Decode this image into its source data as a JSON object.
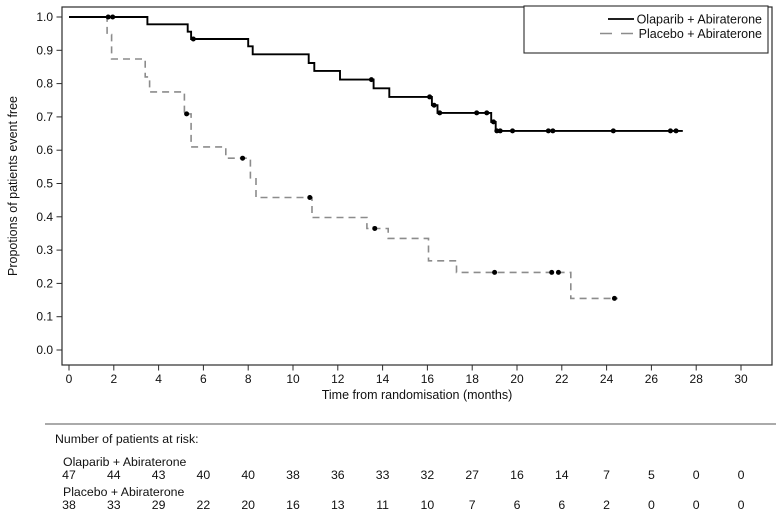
{
  "chart_data": {
    "type": "line",
    "subtype": "kaplan-meier-step",
    "title": "",
    "xlabel": "Time from randomisation (months)",
    "ylabel": "Propotions of patients event free",
    "xlim": [
      0,
      30
    ],
    "ylim": [
      0.0,
      1.0
    ],
    "x_ticks": [
      0,
      2,
      4,
      6,
      8,
      10,
      12,
      14,
      16,
      18,
      20,
      22,
      24,
      26,
      28,
      30
    ],
    "y_ticks": [
      1.0,
      0.9,
      0.8,
      0.7,
      0.6,
      0.5,
      0.4,
      0.3,
      0.2,
      0.1,
      0.0
    ],
    "grid": false,
    "legend_position": "top-right",
    "series": [
      {
        "name": "Olaparib + Abiraterone",
        "color": "#000000",
        "dash": "solid",
        "steps": [
          [
            0,
            1.0
          ],
          [
            3.5,
            1.0
          ],
          [
            3.5,
            0.978
          ],
          [
            5.3,
            0.978
          ],
          [
            5.3,
            0.956
          ],
          [
            5.45,
            0.956
          ],
          [
            5.45,
            0.934
          ],
          [
            8.0,
            0.934
          ],
          [
            8.0,
            0.912
          ],
          [
            8.2,
            0.912
          ],
          [
            8.2,
            0.888
          ],
          [
            10.7,
            0.888
          ],
          [
            10.7,
            0.862
          ],
          [
            10.95,
            0.862
          ],
          [
            10.95,
            0.838
          ],
          [
            12.1,
            0.838
          ],
          [
            12.1,
            0.812
          ],
          [
            13.6,
            0.812
          ],
          [
            13.6,
            0.786
          ],
          [
            14.3,
            0.786
          ],
          [
            14.3,
            0.76
          ],
          [
            16.2,
            0.76
          ],
          [
            16.2,
            0.735
          ],
          [
            16.45,
            0.735
          ],
          [
            16.45,
            0.712
          ],
          [
            18.85,
            0.712
          ],
          [
            18.85,
            0.685
          ],
          [
            19.05,
            0.685
          ],
          [
            19.05,
            0.658
          ],
          [
            27.4,
            0.658
          ]
        ],
        "censor_marks": [
          [
            1.75,
            1.0
          ],
          [
            1.95,
            1.0
          ],
          [
            5.55,
            0.934
          ],
          [
            13.5,
            0.812
          ],
          [
            16.1,
            0.76
          ],
          [
            16.3,
            0.735
          ],
          [
            16.55,
            0.712
          ],
          [
            18.2,
            0.712
          ],
          [
            18.65,
            0.712
          ],
          [
            18.95,
            0.685
          ],
          [
            19.1,
            0.658
          ],
          [
            19.25,
            0.658
          ],
          [
            19.8,
            0.658
          ],
          [
            21.4,
            0.658
          ],
          [
            21.6,
            0.658
          ],
          [
            24.3,
            0.658
          ],
          [
            26.85,
            0.658
          ],
          [
            27.1,
            0.658
          ]
        ]
      },
      {
        "name": "Placebo + Abiraterone",
        "color": "#8c8c8c",
        "dash": "dashed",
        "steps": [
          [
            0,
            1.0
          ],
          [
            1.7,
            1.0
          ],
          [
            1.7,
            0.947
          ],
          [
            1.9,
            0.947
          ],
          [
            1.9,
            0.874
          ],
          [
            3.4,
            0.874
          ],
          [
            3.4,
            0.82
          ],
          [
            3.6,
            0.82
          ],
          [
            3.6,
            0.775
          ],
          [
            5.15,
            0.775
          ],
          [
            5.15,
            0.709
          ],
          [
            5.45,
            0.709
          ],
          [
            5.45,
            0.61
          ],
          [
            7.0,
            0.61
          ],
          [
            7.0,
            0.576
          ],
          [
            8.1,
            0.576
          ],
          [
            8.1,
            0.517
          ],
          [
            8.35,
            0.517
          ],
          [
            8.35,
            0.458
          ],
          [
            10.85,
            0.458
          ],
          [
            10.85,
            0.398
          ],
          [
            13.3,
            0.398
          ],
          [
            13.3,
            0.365
          ],
          [
            14.25,
            0.365
          ],
          [
            14.25,
            0.335
          ],
          [
            16.05,
            0.335
          ],
          [
            16.05,
            0.268
          ],
          [
            17.3,
            0.268
          ],
          [
            17.3,
            0.233
          ],
          [
            22.4,
            0.233
          ],
          [
            22.4,
            0.155
          ],
          [
            24.5,
            0.155
          ]
        ],
        "censor_marks": [
          [
            5.25,
            0.709
          ],
          [
            7.75,
            0.576
          ],
          [
            10.75,
            0.458
          ],
          [
            13.65,
            0.365
          ],
          [
            19.0,
            0.233
          ],
          [
            21.55,
            0.233
          ],
          [
            21.85,
            0.233
          ],
          [
            24.35,
            0.155
          ]
        ]
      }
    ]
  },
  "risk_table": {
    "title": "Number of patients at risk:",
    "rows": [
      {
        "label": "Olaparib + Abiraterone",
        "counts": [
          47,
          44,
          43,
          40,
          40,
          38,
          36,
          33,
          32,
          27,
          16,
          14,
          7,
          5,
          0,
          0
        ]
      },
      {
        "label": "Placebo + Abiraterone",
        "counts": [
          38,
          33,
          29,
          22,
          20,
          16,
          13,
          11,
          10,
          7,
          6,
          6,
          2,
          0,
          0,
          0
        ]
      }
    ]
  }
}
